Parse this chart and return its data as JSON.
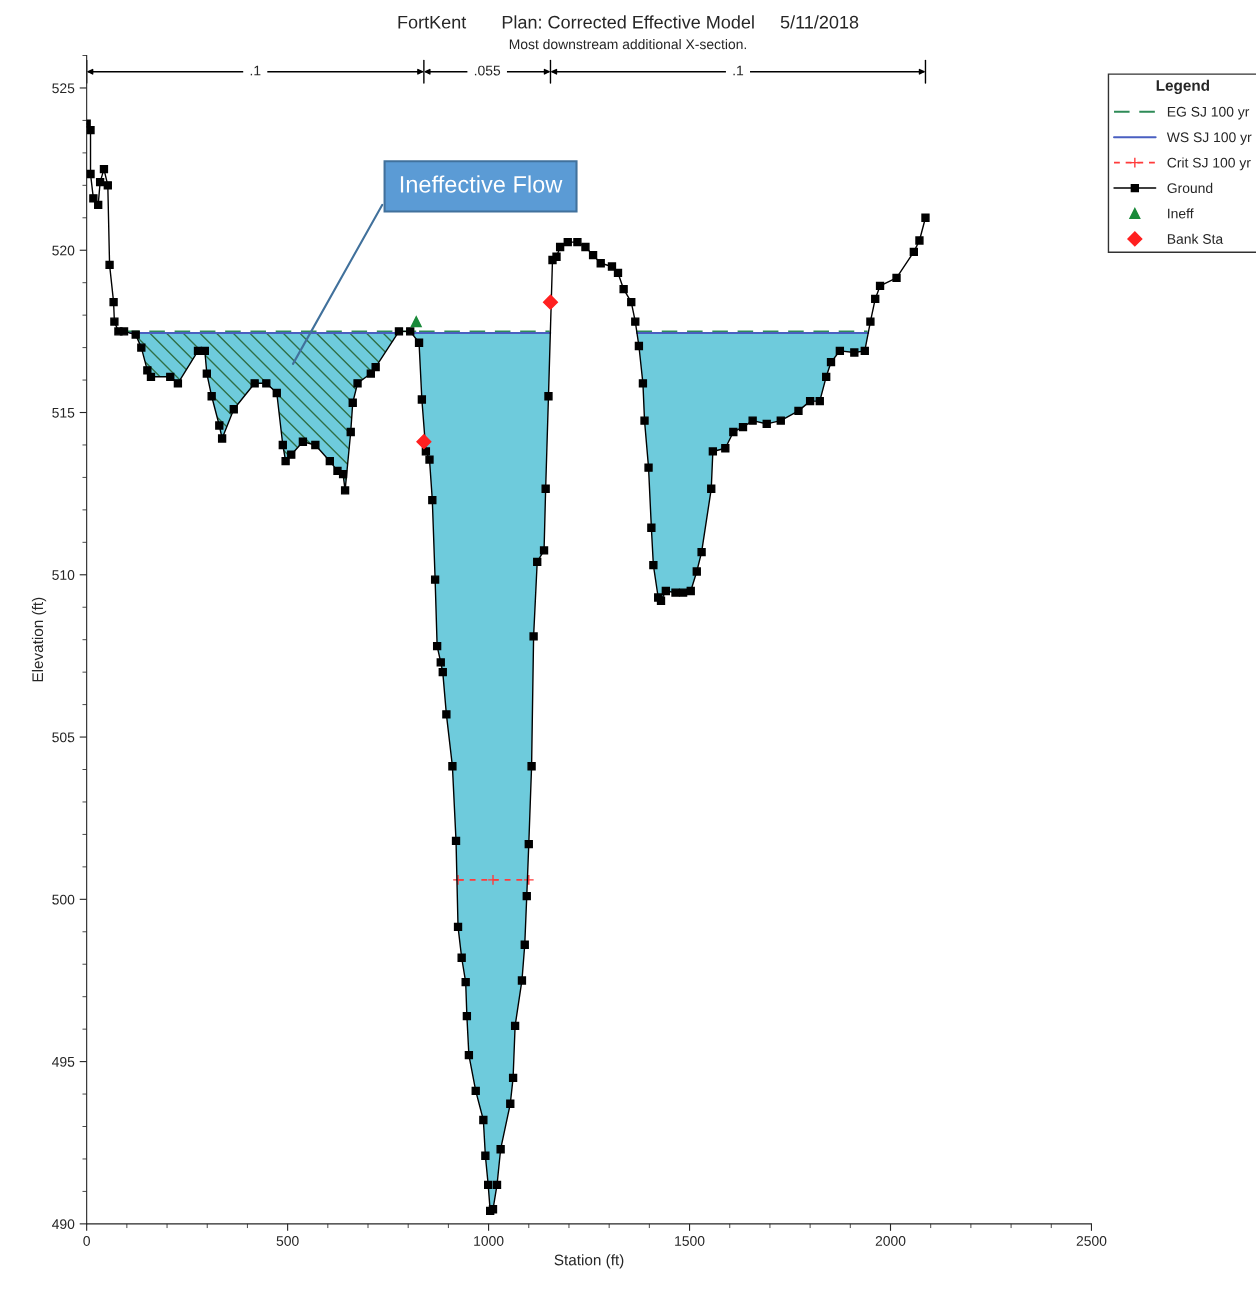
{
  "chart_data": {
    "type": "line",
    "title": "FortKent       Plan: Corrected Effective Model     5/11/2018",
    "subtitle": "Most downstream additional X-section.",
    "xlabel": "Station (ft)",
    "ylabel": "Elevation (ft)",
    "legend_title": "Legend",
    "legend": "right",
    "xlim": [
      0,
      2500
    ],
    "xticks": [
      0,
      500,
      1000,
      1500,
      2000,
      2500
    ],
    "ylim": [
      490,
      526
    ],
    "yticks": [
      490,
      495,
      500,
      505,
      510,
      515,
      520,
      525
    ],
    "grid": false,
    "annotations": [
      "Ineffective Flow",
      ".1",
      ".055",
      ".1"
    ],
    "series": [
      {
        "name": "EG SJ 100 yr",
        "color": "#2e8b57",
        "line_style": "dashed",
        "marker": "none",
        "x": [
          93,
          820,
          821,
          827,
          1152,
          1153,
          1368,
          1943
        ],
        "values": [
          517.5,
          517.5,
          null,
          517.5,
          517.5,
          null,
          517.5,
          517.5
        ]
      },
      {
        "name": "WS SJ 100 yr",
        "color": "#4a5fc1",
        "line_style": "solid",
        "marker": "none",
        "x": [
          108,
          774,
          794,
          814,
          1153.6,
          1260,
          1369.2,
          1944.6
        ],
        "values": [
          517.45,
          517.45,
          null,
          517.45,
          517.45,
          null,
          517.45,
          517.45
        ]
      },
      {
        "name": "Crit SJ 100 yr",
        "color": "#ff3b3b",
        "line_style": "dotted",
        "marker": "cross",
        "x": [
          924,
          1011,
          1100
        ],
        "values": [
          500.6,
          500.6,
          500.6
        ]
      },
      {
        "name": "Ground",
        "color": "#000000",
        "line_style": "solid",
        "marker": "square",
        "x": [
          0,
          9.6,
          9.6,
          16.7,
          28.7,
          33.5,
          43,
          52.6,
          57,
          67,
          69,
          79,
          93,
          122,
          136,
          151,
          160,
          208,
          227,
          277,
          294,
          299,
          311,
          330,
          337,
          366,
          418,
          447,
          473,
          488,
          495,
          509,
          538,
          569,
          605,
          624,
          638,
          643,
          657,
          662,
          674,
          707,
          719,
          777,
          805,
          827,
          834,
          844,
          853,
          860,
          867,
          872,
          881,
          886,
          895,
          910,
          919,
          924,
          933,
          943,
          946,
          951,
          968,
          987,
          992,
          999,
          1004,
          1011,
          1021,
          1030,
          1054,
          1061,
          1066,
          1083,
          1090,
          1095,
          1100,
          1107,
          1112,
          1121,
          1138,
          1142,
          1149,
          1159,
          1169,
          1178,
          1197,
          1221,
          1241,
          1260,
          1279,
          1307,
          1322,
          1336,
          1355,
          1365,
          1374,
          1384,
          1388,
          1398,
          1405,
          1410,
          1422,
          1429,
          1441,
          1465,
          1484,
          1503,
          1518,
          1530,
          1554,
          1558,
          1589,
          1609,
          1633,
          1657,
          1692,
          1727,
          1771,
          1800,
          1824,
          1840,
          1852,
          1874,
          1910,
          1936,
          1950,
          1962,
          1974,
          2015,
          2058,
          2072,
          2087
        ],
        "values": [
          523.9,
          523.7,
          522.35,
          521.6,
          521.4,
          522.1,
          522.5,
          522.0,
          519.55,
          518.4,
          517.8,
          517.5,
          517.5,
          517.4,
          517.0,
          516.3,
          516.1,
          516.1,
          515.9,
          516.9,
          516.9,
          516.2,
          515.5,
          514.6,
          514.2,
          515.1,
          515.9,
          515.9,
          515.6,
          514.0,
          513.5,
          513.7,
          514.1,
          514.0,
          513.5,
          513.2,
          513.1,
          512.6,
          514.4,
          515.3,
          515.9,
          516.2,
          516.4,
          517.5,
          517.5,
          517.15,
          515.4,
          513.8,
          513.55,
          512.3,
          509.85,
          507.8,
          507.3,
          507.0,
          505.7,
          504.1,
          501.8,
          499.15,
          498.2,
          497.45,
          496.4,
          495.2,
          494.1,
          493.2,
          492.1,
          491.2,
          490.4,
          490.45,
          491.2,
          492.3,
          493.7,
          494.5,
          496.1,
          497.5,
          498.6,
          500.1,
          501.7,
          504.1,
          508.1,
          510.4,
          510.75,
          512.65,
          515.5,
          519.7,
          519.8,
          520.1,
          520.25,
          520.25,
          520.1,
          519.85,
          519.6,
          519.5,
          519.3,
          518.8,
          518.4,
          517.8,
          517.05,
          515.9,
          514.75,
          513.3,
          511.45,
          510.3,
          509.3,
          509.2,
          509.5,
          509.45,
          509.45,
          509.5,
          510.1,
          510.7,
          512.65,
          513.8,
          513.9,
          514.4,
          514.55,
          514.75,
          514.65,
          514.75,
          515.05,
          515.35,
          515.35,
          516.1,
          516.55,
          516.9,
          516.85,
          516.9,
          517.8,
          518.5,
          518.9,
          519.15,
          519.95,
          520.3,
          521.0
        ]
      },
      {
        "name": "Ineff",
        "type": "scatter",
        "color": "#1a8a3a",
        "marker": "triangle",
        "x": [
          820
        ],
        "values": [
          517.8
        ]
      },
      {
        "name": "Bank Sta",
        "type": "scatter",
        "color": "#ff2020",
        "marker": "diamond",
        "x": [
          839,
          1154
        ],
        "values": [
          514.1,
          518.4
        ]
      }
    ]
  }
}
